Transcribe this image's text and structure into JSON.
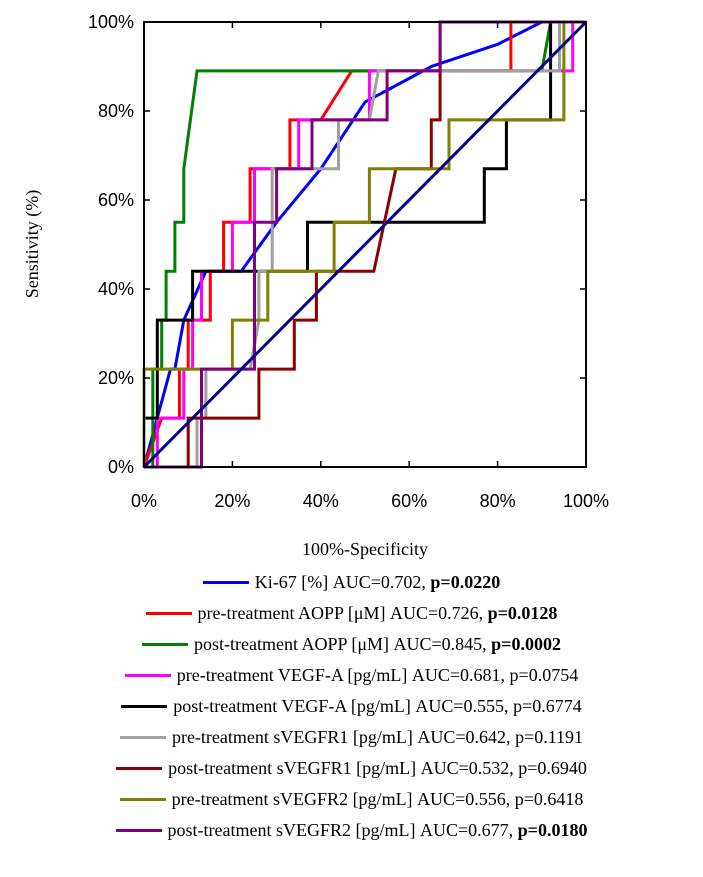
{
  "chart_data": {
    "type": "line",
    "xlabel": "100%-Specificity",
    "ylabel": "Sensitivity (%)",
    "xlim": [
      0,
      100
    ],
    "ylim": [
      0,
      100
    ],
    "x_ticks": [
      "0%",
      "20%",
      "40%",
      "60%",
      "80%",
      "100%"
    ],
    "y_ticks": [
      "0%",
      "20%",
      "40%",
      "60%",
      "80%",
      "100%"
    ],
    "grid": false,
    "legend_position": "bottom",
    "reference_line": {
      "color": "#00008b",
      "points": [
        [
          0,
          0
        ],
        [
          100,
          100
        ]
      ]
    },
    "series": [
      {
        "name": "Ki-67 [%]",
        "auc": "AUC=0.702,",
        "p": "p=0.0220",
        "p_bold": true,
        "color": "#0000ff",
        "points": [
          [
            0,
            0
          ],
          [
            6,
            22
          ],
          [
            7,
            22
          ],
          [
            9,
            33
          ],
          [
            14,
            44
          ],
          [
            22,
            44
          ],
          [
            30,
            55
          ],
          [
            40,
            67
          ],
          [
            50,
            82
          ],
          [
            65,
            90
          ],
          [
            80,
            95
          ],
          [
            90,
            100
          ],
          [
            100,
            100
          ]
        ]
      },
      {
        "name": "pre-treatment AOPP [μM]",
        "auc": "AUC=0.726,",
        "p": "p=0.0128",
        "p_bold": true,
        "color": "#ff0000",
        "points": [
          [
            0,
            0
          ],
          [
            4,
            11
          ],
          [
            8,
            11
          ],
          [
            8,
            22
          ],
          [
            10,
            22
          ],
          [
            10,
            33
          ],
          [
            15,
            33
          ],
          [
            15,
            44
          ],
          [
            18,
            44
          ],
          [
            18,
            55
          ],
          [
            24,
            55
          ],
          [
            24,
            67
          ],
          [
            33,
            67
          ],
          [
            33,
            78
          ],
          [
            40,
            78
          ],
          [
            47,
            89
          ],
          [
            83,
            89
          ],
          [
            83,
            100
          ],
          [
            100,
            100
          ]
        ]
      },
      {
        "name": "post-treatment AOPP [μM]",
        "auc": "AUC=0.845,",
        "p": "p=0.0002",
        "p_bold": true,
        "color": "#008000",
        "points": [
          [
            0,
            0
          ],
          [
            2,
            0
          ],
          [
            2,
            22
          ],
          [
            4,
            22
          ],
          [
            4,
            33
          ],
          [
            5,
            33
          ],
          [
            5,
            44
          ],
          [
            7,
            44
          ],
          [
            7,
            55
          ],
          [
            9,
            55
          ],
          [
            9,
            67
          ],
          [
            12,
            89
          ],
          [
            90,
            89
          ],
          [
            92,
            100
          ],
          [
            100,
            100
          ]
        ]
      },
      {
        "name": "pre-treatment VEGF-A [pg/mL]",
        "auc": "AUC=0.681,",
        "p": "p=0.0754",
        "p_bold": false,
        "color": "#ff00ff",
        "points": [
          [
            0,
            0
          ],
          [
            3,
            0
          ],
          [
            3,
            11
          ],
          [
            9,
            11
          ],
          [
            9,
            22
          ],
          [
            11,
            22
          ],
          [
            11,
            33
          ],
          [
            13,
            33
          ],
          [
            13,
            44
          ],
          [
            20,
            44
          ],
          [
            20,
            55
          ],
          [
            25,
            55
          ],
          [
            25,
            67
          ],
          [
            35,
            67
          ],
          [
            35,
            78
          ],
          [
            51,
            78
          ],
          [
            51,
            89
          ],
          [
            97,
            89
          ],
          [
            97,
            100
          ],
          [
            100,
            100
          ]
        ]
      },
      {
        "name": "post-treatment VEGF-A [pg/mL]",
        "auc": "AUC=0.555,",
        "p": "p=0.6774",
        "p_bold": false,
        "color": "#000000",
        "points": [
          [
            0,
            0
          ],
          [
            0,
            11
          ],
          [
            3,
            11
          ],
          [
            3,
            33
          ],
          [
            11,
            33
          ],
          [
            11,
            44
          ],
          [
            37,
            44
          ],
          [
            37,
            55
          ],
          [
            77,
            55
          ],
          [
            77,
            67
          ],
          [
            82,
            67
          ],
          [
            82,
            78
          ],
          [
            92,
            78
          ],
          [
            92,
            100
          ],
          [
            100,
            100
          ]
        ]
      },
      {
        "name": "pre-treatment sVEGFR1 [pg/mL]",
        "auc": "AUC=0.642,",
        "p": "p=0.1191",
        "p_bold": false,
        "color": "#a0a0a0",
        "points": [
          [
            0,
            0
          ],
          [
            12,
            0
          ],
          [
            12,
            11
          ],
          [
            14,
            11
          ],
          [
            14,
            22
          ],
          [
            20,
            22
          ],
          [
            24,
            22
          ],
          [
            26,
            33
          ],
          [
            26,
            44
          ],
          [
            29,
            44
          ],
          [
            29,
            67
          ],
          [
            44,
            67
          ],
          [
            44,
            78
          ],
          [
            51,
            78
          ],
          [
            53,
            89
          ],
          [
            94,
            89
          ],
          [
            94,
            100
          ],
          [
            100,
            100
          ]
        ]
      },
      {
        "name": "post-treatment sVEGFR1 [pg/mL]",
        "auc": "AUC=0.532,",
        "p": "p=0.6940",
        "p_bold": false,
        "color": "#8b0000",
        "points": [
          [
            0,
            0
          ],
          [
            10,
            0
          ],
          [
            10,
            11
          ],
          [
            26,
            11
          ],
          [
            26,
            22
          ],
          [
            34,
            22
          ],
          [
            34,
            33
          ],
          [
            39,
            33
          ],
          [
            39,
            44
          ],
          [
            52,
            44
          ],
          [
            57,
            67
          ],
          [
            65,
            67
          ],
          [
            65,
            78
          ],
          [
            67,
            78
          ],
          [
            67,
            100
          ],
          [
            100,
            100
          ]
        ]
      },
      {
        "name": "pre-treatment sVEGFR2 [pg/mL]",
        "auc": "AUC=0.556,",
        "p": "p=0.6418",
        "p_bold": false,
        "color": "#808000",
        "points": [
          [
            0,
            0
          ],
          [
            0,
            22
          ],
          [
            20,
            22
          ],
          [
            20,
            33
          ],
          [
            28,
            33
          ],
          [
            28,
            44
          ],
          [
            43,
            44
          ],
          [
            43,
            55
          ],
          [
            51,
            55
          ],
          [
            51,
            67
          ],
          [
            69,
            67
          ],
          [
            69,
            78
          ],
          [
            95,
            78
          ],
          [
            95,
            100
          ],
          [
            100,
            100
          ]
        ]
      },
      {
        "name": "post-treatment sVEGFR2 [pg/mL]",
        "auc": "AUC=0.677,",
        "p": "p=0.0180",
        "p_bold": true,
        "color": "#800080",
        "points": [
          [
            0,
            0
          ],
          [
            13,
            0
          ],
          [
            13,
            22
          ],
          [
            25,
            22
          ],
          [
            25,
            55
          ],
          [
            30,
            55
          ],
          [
            30,
            67
          ],
          [
            38,
            67
          ],
          [
            38,
            78
          ],
          [
            55,
            78
          ],
          [
            55,
            89
          ],
          [
            67,
            89
          ],
          [
            67,
            100
          ],
          [
            100,
            100
          ]
        ]
      }
    ]
  }
}
